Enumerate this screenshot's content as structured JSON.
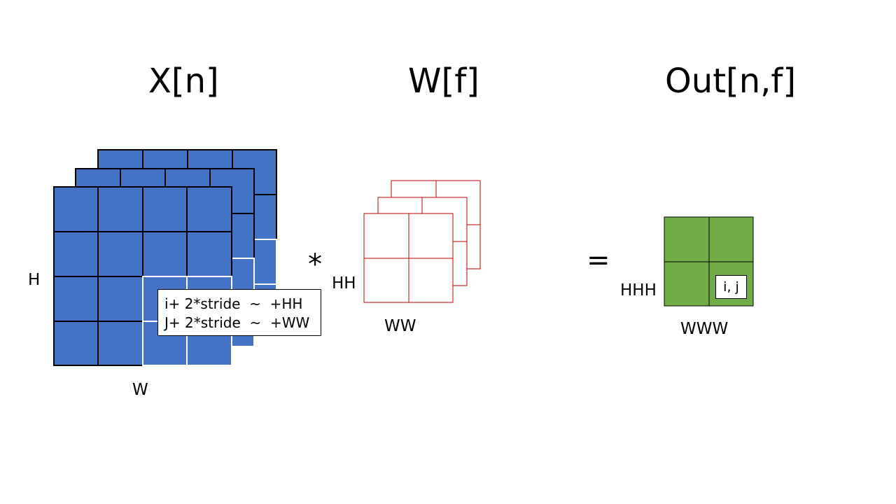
{
  "titles": {
    "input": "X[n]",
    "filter": "W[f]",
    "output": "Out[n,f]"
  },
  "operators": {
    "multiply": "*",
    "equals": "="
  },
  "input_labels": {
    "height": "H",
    "width": "W"
  },
  "filter_labels": {
    "height": "HH",
    "width": "WW"
  },
  "output_labels": {
    "height": "HHH",
    "width": "WWW",
    "cell": "i, j"
  },
  "callout": {
    "line1": "i+ 2*stride  ~  +HH",
    "line2": "J+ 2*stride  ~  +WW"
  },
  "colors": {
    "input_fill": "#4472C4",
    "filter_stroke": "#C00000",
    "output_fill": "#70AD47",
    "highlight_stroke": "#ffffff"
  }
}
